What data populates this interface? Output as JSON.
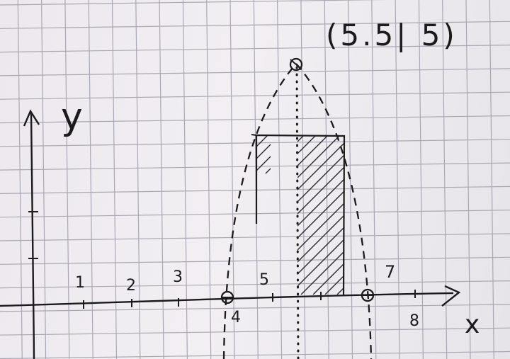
{
  "axes": {
    "x_label": "x",
    "y_label": "y",
    "x_ticks": [
      "1",
      "2",
      "3",
      "4",
      "5",
      "7",
      "8"
    ]
  },
  "vertex_label": "(5.5| 5)",
  "colors": {
    "ink": "#1b1b1b",
    "grid": "#a9a7b3",
    "paper": "#ece8ee"
  }
}
